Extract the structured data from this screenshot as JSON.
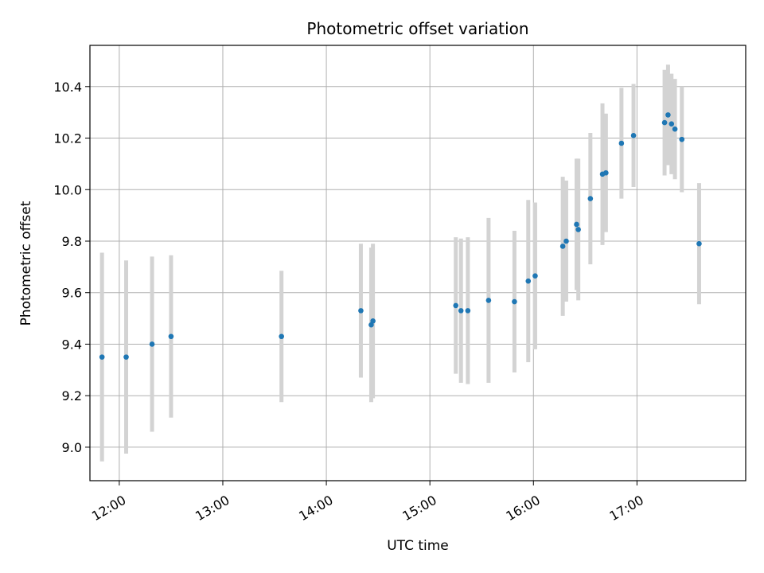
{
  "chart_data": {
    "type": "scatter",
    "title": "Photometric offset variation",
    "xlabel": "UTC time",
    "ylabel": "Photometric offset",
    "x_ticks": [
      "12:00",
      "13:00",
      "14:00",
      "15:00",
      "16:00",
      "17:00"
    ],
    "y_ticks": [
      "9.0",
      "9.2",
      "9.4",
      "9.6",
      "9.8",
      "10.0",
      "10.2",
      "10.4"
    ],
    "xlim": [
      "11:43",
      "18:03"
    ],
    "ylim": [
      8.87,
      10.56
    ],
    "grid": true,
    "marker_color": "#1f77b4",
    "errorbar_color": "#d3d3d3",
    "points": [
      {
        "t": "11:50",
        "y": 9.35,
        "err": 0.405
      },
      {
        "t": "12:04",
        "y": 9.35,
        "err": 0.375
      },
      {
        "t": "12:19",
        "y": 9.4,
        "err": 0.34
      },
      {
        "t": "12:30",
        "y": 9.43,
        "err": 0.315
      },
      {
        "t": "13:34",
        "y": 9.43,
        "err": 0.255
      },
      {
        "t": "14:20",
        "y": 9.53,
        "err": 0.26
      },
      {
        "t": "14:26",
        "y": 9.475,
        "err": 0.3
      },
      {
        "t": "14:27",
        "y": 9.49,
        "err": 0.3
      },
      {
        "t": "15:15",
        "y": 9.55,
        "err": 0.265
      },
      {
        "t": "15:18",
        "y": 9.53,
        "err": 0.28
      },
      {
        "t": "15:22",
        "y": 9.53,
        "err": 0.285
      },
      {
        "t": "15:34",
        "y": 9.57,
        "err": 0.32
      },
      {
        "t": "15:49",
        "y": 9.565,
        "err": 0.275
      },
      {
        "t": "15:57",
        "y": 9.645,
        "err": 0.315
      },
      {
        "t": "16:01",
        "y": 9.665,
        "err": 0.285
      },
      {
        "t": "16:17",
        "y": 9.78,
        "err": 0.27
      },
      {
        "t": "16:19",
        "y": 9.8,
        "err": 0.235
      },
      {
        "t": "16:25",
        "y": 9.865,
        "err": 0.255
      },
      {
        "t": "16:26",
        "y": 9.845,
        "err": 0.275
      },
      {
        "t": "16:33",
        "y": 9.965,
        "err": 0.255
      },
      {
        "t": "16:40",
        "y": 10.06,
        "err": 0.275
      },
      {
        "t": "16:42",
        "y": 10.065,
        "err": 0.23
      },
      {
        "t": "16:51",
        "y": 10.18,
        "err": 0.215
      },
      {
        "t": "16:58",
        "y": 10.21,
        "err": 0.2
      },
      {
        "t": "17:16",
        "y": 10.26,
        "err": 0.205
      },
      {
        "t": "17:18",
        "y": 10.29,
        "err": 0.195
      },
      {
        "t": "17:20",
        "y": 10.255,
        "err": 0.195
      },
      {
        "t": "17:22",
        "y": 10.235,
        "err": 0.195
      },
      {
        "t": "17:26",
        "y": 10.195,
        "err": 0.205
      },
      {
        "t": "17:36",
        "y": 9.79,
        "err": 0.235
      }
    ]
  }
}
